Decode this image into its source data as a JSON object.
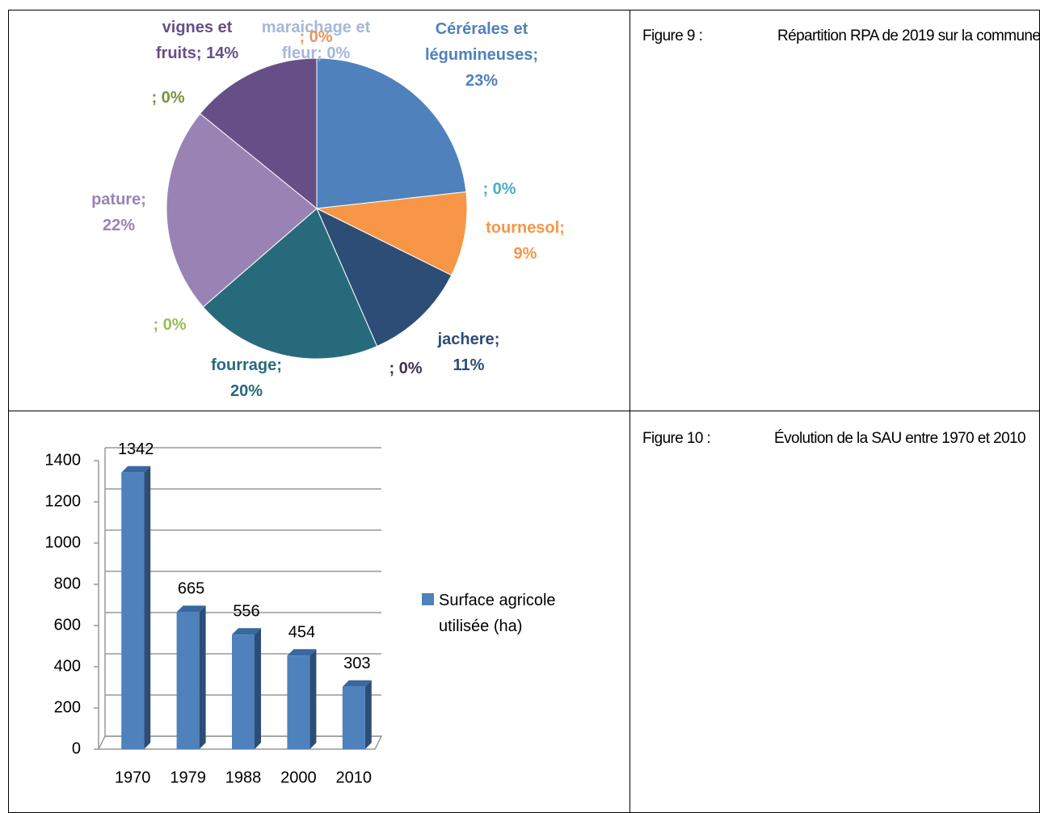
{
  "chart_data": [
    {
      "type": "pie",
      "categories": [
        "Cérérales et légumineuses",
        null,
        "tournesol",
        "jachere",
        null,
        "fourrage",
        null,
        "pature",
        null,
        "vignes et fruits",
        "maraichage et fleur",
        null
      ],
      "values": [
        23,
        0,
        9,
        11,
        0,
        20,
        0,
        22,
        0,
        14,
        0,
        0
      ],
      "value_labels": [
        "; 23%",
        "; 0%",
        "; 9%",
        "; 11%",
        "; 0%",
        "; 20%",
        "; 0%",
        "; 22%",
        "; 0%",
        "; 14%",
        "; 0%",
        "; 0%"
      ],
      "colors": [
        "#4f81bd",
        "#4bacc6",
        "#f79646",
        "#2c4d75",
        "#403152",
        "#276a7c",
        "#9bbb59",
        "#9983b4",
        "#77933c",
        "#664f87",
        "#a5b8d8",
        "#e6955a"
      ]
    },
    {
      "type": "bar",
      "categories": [
        "1970",
        "1979",
        "1988",
        "2000",
        "2010"
      ],
      "series": [
        {
          "name": "Surface agricole utilisée (ha)",
          "color": "#4f81bd",
          "values": [
            1342,
            665,
            556,
            454,
            303
          ]
        }
      ],
      "ylim": [
        0,
        1400
      ],
      "yticks": [
        0,
        200,
        400,
        600,
        800,
        1000,
        1200,
        1400
      ],
      "grid": true,
      "legend": "right"
    }
  ],
  "captions": [
    {
      "number": "Figure 9 :",
      "text": "Répartition RPA de 2019 sur la commune"
    },
    {
      "number": "Figure 10 :",
      "text": "Évolution de la SAU entre 1970 et 2010"
    }
  ]
}
